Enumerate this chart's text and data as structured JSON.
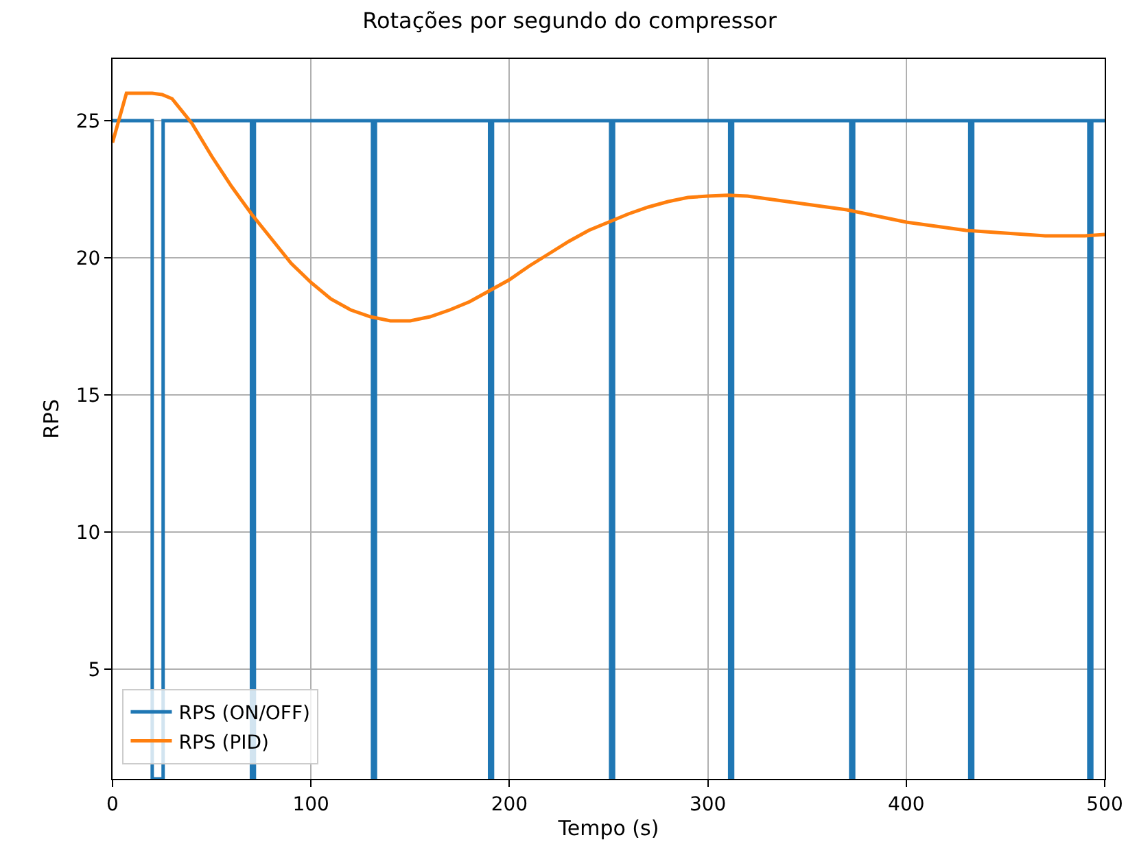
{
  "chart_data": {
    "type": "line",
    "title": "Rotações por segundo do compressor",
    "xlabel": "Tempo (s)",
    "ylabel": "RPS",
    "xlim": [
      0,
      500
    ],
    "xticks": [
      0,
      100,
      200,
      300,
      400,
      500
    ],
    "ylim": [
      1,
      27.25
    ],
    "yticks": [
      5,
      10,
      15,
      20,
      25
    ],
    "grid": true,
    "legend": "bottom left",
    "line_style": "solid",
    "marker": "none",
    "series": [
      {
        "name": "RPS (ON/OFF)",
        "type": "step",
        "color": "#1f77b4",
        "x": [
          0,
          20,
          25.5,
          70,
          71.5,
          131,
          132.5,
          190,
          191.5,
          251,
          252.5,
          311,
          312.5,
          372,
          373.5,
          432,
          433.5,
          492,
          493.5,
          500
        ],
        "values": [
          25,
          1,
          25,
          1,
          25,
          1,
          25,
          1,
          25,
          1,
          25,
          1,
          25,
          1,
          25,
          1,
          25,
          1,
          25,
          25
        ]
      },
      {
        "name": "RPS (PID)",
        "color": "#ff7f0e",
        "x": [
          0,
          7,
          20,
          25,
          30,
          40,
          50,
          60,
          70,
          80,
          90,
          100,
          110,
          120,
          130,
          140,
          150,
          160,
          170,
          180,
          190,
          200,
          210,
          220,
          230,
          240,
          250,
          260,
          270,
          280,
          290,
          300,
          310,
          320,
          330,
          340,
          350,
          360,
          370,
          380,
          390,
          400,
          410,
          420,
          430,
          440,
          450,
          460,
          470,
          480,
          490,
          500
        ],
        "values": [
          24.2,
          26,
          26,
          25.95,
          25.8,
          24.9,
          23.7,
          22.6,
          21.6,
          20.7,
          19.8,
          19.1,
          18.5,
          18.1,
          17.85,
          17.7,
          17.7,
          17.85,
          18.1,
          18.4,
          18.8,
          19.2,
          19.7,
          20.15,
          20.6,
          21.0,
          21.3,
          21.6,
          21.85,
          22.05,
          22.2,
          22.25,
          22.28,
          22.25,
          22.15,
          22.05,
          21.95,
          21.85,
          21.75,
          21.6,
          21.45,
          21.3,
          21.2,
          21.1,
          21.0,
          20.95,
          20.9,
          20.85,
          20.8,
          20.8,
          20.8,
          20.85
        ]
      }
    ]
  }
}
